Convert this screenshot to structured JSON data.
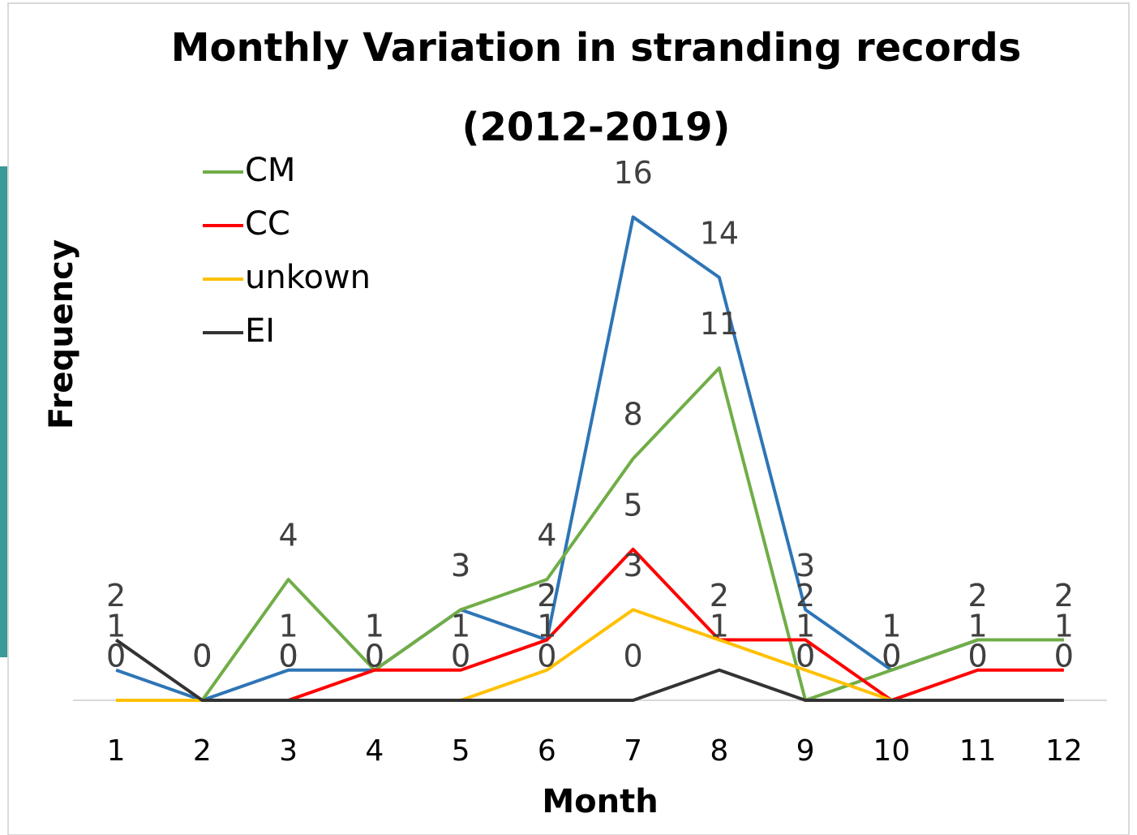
{
  "chart_data": {
    "type": "line",
    "title": [
      "Monthly Variation in stranding records",
      "(2012-2019)"
    ],
    "x_label": "Month",
    "y_label": "Frequency",
    "categories": [
      "1",
      "2",
      "3",
      "4",
      "5",
      "6",
      "7",
      "8",
      "9",
      "10",
      "11",
      "12"
    ],
    "ylim": [
      0,
      18
    ],
    "legend": "top-left",
    "series": [
      {
        "color": "#2e75b6",
        "values": [
          1,
          0,
          1,
          1,
          3,
          2,
          16,
          14,
          3,
          1,
          2,
          2
        ]
      },
      {
        "name": "CM",
        "color": "#70ad47",
        "values": [
          0,
          0,
          4,
          1,
          3,
          4,
          8,
          11,
          0,
          1,
          2,
          2
        ]
      },
      {
        "name": "CC",
        "color": "#ff0000",
        "values": [
          null,
          null,
          0,
          1,
          1,
          2,
          5,
          2,
          2,
          0,
          1,
          1
        ]
      },
      {
        "name": "unkown",
        "color": "#ffc000",
        "values": [
          0,
          0,
          0,
          0,
          0,
          1,
          3,
          2,
          1,
          0,
          0,
          0
        ]
      },
      {
        "name": "EI",
        "color": "#333333",
        "values": [
          2,
          0,
          0,
          0,
          0,
          0,
          0,
          1,
          0,
          0,
          0,
          0
        ]
      }
    ]
  }
}
